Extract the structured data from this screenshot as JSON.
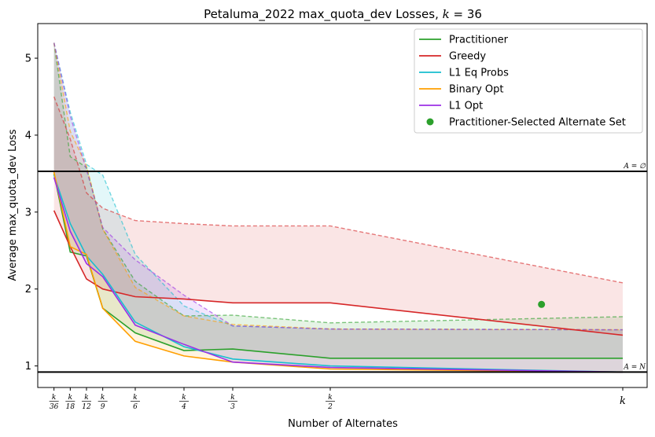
{
  "chart_data": {
    "type": "line",
    "title": "Petaluma_2022 max_quota_dev Losses, k = 36",
    "xlabel": "Number of Alternates",
    "ylabel": "Average max_quota_dev Loss",
    "x": [
      1,
      2,
      3,
      4,
      6,
      9,
      12,
      18,
      36
    ],
    "xlim": [
      0.0,
      37.5
    ],
    "ylim": [
      0.72,
      5.45
    ],
    "xtick_labels": [
      {
        "x": 1,
        "num": "k",
        "den": "36"
      },
      {
        "x": 2,
        "num": "k",
        "den": "18"
      },
      {
        "x": 3,
        "num": "k",
        "den": "12"
      },
      {
        "x": 4,
        "num": "k",
        "den": "9"
      },
      {
        "x": 6,
        "num": "k",
        "den": "6"
      },
      {
        "x": 9,
        "num": "k",
        "den": "4"
      },
      {
        "x": 12,
        "num": "k",
        "den": "3"
      },
      {
        "x": 18,
        "num": "k",
        "den": "2"
      },
      {
        "x": 36,
        "num": "k",
        "den": ""
      }
    ],
    "yticks": [
      1,
      2,
      3,
      4,
      5
    ],
    "ytick_labels": [
      "1",
      "2",
      "3",
      "4",
      "5"
    ],
    "grid": false,
    "legend_position": "top-right",
    "series": [
      {
        "name": "Practitioner",
        "color": "#2ca02c",
        "mean": [
          3.5,
          2.48,
          2.43,
          1.75,
          1.43,
          1.2,
          1.22,
          1.1,
          1.1
        ],
        "upper": [
          5.2,
          3.72,
          3.58,
          2.78,
          2.1,
          1.65,
          1.66,
          1.56,
          1.64
        ]
      },
      {
        "name": "Greedy",
        "color": "#d62728",
        "mean": [
          3.02,
          2.55,
          2.13,
          2.0,
          1.9,
          1.87,
          1.82,
          1.82,
          1.4
        ],
        "upper": [
          4.5,
          3.95,
          3.25,
          3.05,
          2.89,
          2.85,
          2.82,
          2.82,
          2.08
        ]
      },
      {
        "name": "L1 Eq Probs",
        "color": "#17becf",
        "mean": [
          3.48,
          2.85,
          2.43,
          2.19,
          1.57,
          1.25,
          1.09,
          1.0,
          0.92
        ],
        "upper": [
          5.2,
          4.3,
          3.62,
          3.48,
          2.45,
          1.78,
          1.52,
          1.48,
          1.47
        ]
      },
      {
        "name": "Binary Opt",
        "color": "#ff9f00",
        "mean": [
          3.52,
          2.55,
          2.45,
          1.75,
          1.32,
          1.13,
          1.05,
          0.96,
          0.92
        ],
        "upper": [
          5.2,
          4.05,
          3.6,
          2.78,
          2.02,
          1.65,
          1.54,
          1.48,
          1.47
        ]
      },
      {
        "name": "L1 Opt",
        "color": "#9b30e6",
        "mean": [
          3.45,
          2.75,
          2.33,
          2.16,
          1.53,
          1.28,
          1.05,
          0.98,
          0.92
        ],
        "upper": [
          5.2,
          4.25,
          3.55,
          2.8,
          2.38,
          1.92,
          1.52,
          1.48,
          1.47
        ]
      }
    ],
    "scatter": {
      "name": "Practitioner-Selected Alternate Set",
      "color": "#2ca02c",
      "points": [
        {
          "x": 31,
          "y": 1.8
        }
      ]
    },
    "reference_lines": [
      {
        "y": 3.53,
        "label": "A = ∅"
      },
      {
        "y": 0.92,
        "label": "A = N"
      }
    ]
  }
}
